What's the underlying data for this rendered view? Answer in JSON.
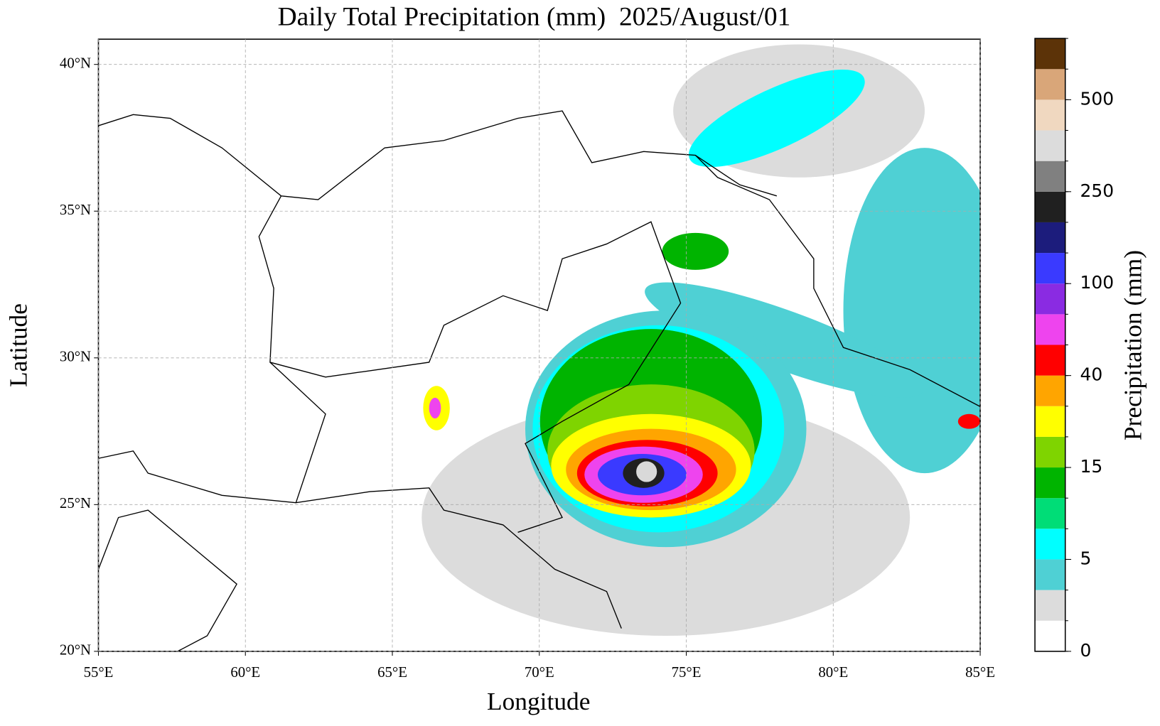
{
  "title": "Daily Total Precipitation (mm)  2025/August/01",
  "map": {
    "xlabel": "Longitude",
    "ylabel": "Latitude",
    "xlim": [
      55,
      85
    ],
    "ylim": [
      20,
      40.86
    ],
    "xticks": [
      {
        "value": 55,
        "label": "55°E"
      },
      {
        "value": 60,
        "label": "60°E"
      },
      {
        "value": 65,
        "label": "65°E"
      },
      {
        "value": 70,
        "label": "70°E"
      },
      {
        "value": 75,
        "label": "75°E"
      },
      {
        "value": 80,
        "label": "80°E"
      },
      {
        "value": 85,
        "label": "85°E"
      }
    ],
    "yticks": [
      {
        "value": 20,
        "label": "20°N"
      },
      {
        "value": 25,
        "label": "25°N"
      },
      {
        "value": 30,
        "label": "30°N"
      },
      {
        "value": 35,
        "label": "35°N"
      },
      {
        "value": 40,
        "label": "40°N"
      }
    ],
    "grid": true
  },
  "colorbar": {
    "label": "Precipitation (mm)",
    "colors": [
      "#ffffff",
      "#dcdcdc",
      "#4fd0d4",
      "#00ffff",
      "#00dd77",
      "#00b400",
      "#7fd400",
      "#ffff00",
      "#ffa500",
      "#ff0000",
      "#ee44ee",
      "#8a2be2",
      "#3a3aff",
      "#1c1c7c",
      "#202020",
      "#808080",
      "#dcdcdc",
      "#f0d8c0",
      "#d9a679",
      "#5c3308"
    ],
    "levels": [
      0,
      1,
      2.5,
      5,
      7.5,
      10,
      15,
      20,
      30,
      40,
      50,
      75,
      100,
      150,
      200,
      250,
      300,
      400,
      500,
      600,
      700
    ],
    "ticks": [
      0,
      5,
      15,
      40,
      100,
      250,
      500
    ]
  }
}
